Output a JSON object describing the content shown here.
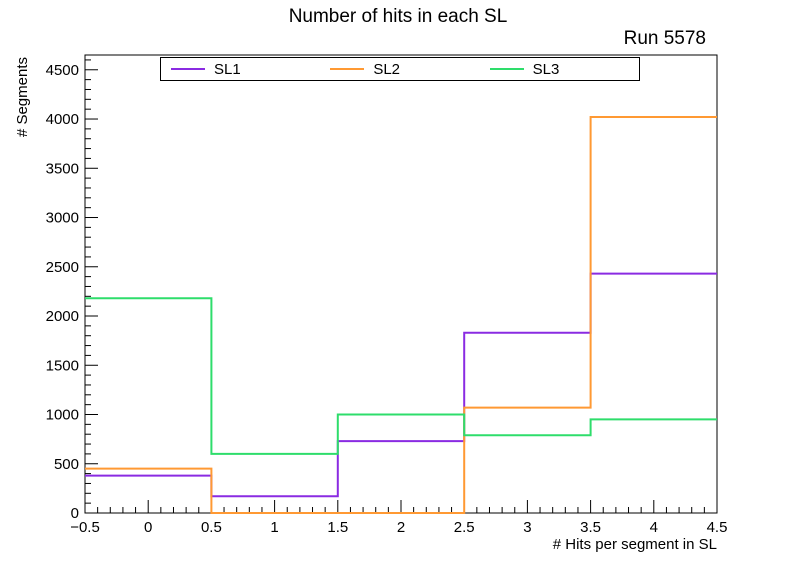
{
  "header": {
    "run_label": "Run 5578"
  },
  "chart_data": {
    "type": "step-histogram",
    "title": "Number of hits in each SL",
    "xlabel": "# Hits per segment in SL",
    "ylabel": "# Segments",
    "xlim": [
      -0.5,
      4.5
    ],
    "ylim": [
      0,
      4650
    ],
    "grid": false,
    "legend_position": "top",
    "bin_edges": [
      -0.5,
      0.5,
      1.5,
      2.5,
      3.5,
      4.5
    ],
    "bin_centers": [
      0,
      1,
      2,
      3,
      4
    ],
    "series": [
      {
        "name": "SL1",
        "color": "#8a2be2",
        "values": [
          380,
          170,
          730,
          1830,
          2430
        ]
      },
      {
        "name": "SL2",
        "color": "#ff9933",
        "values": [
          450,
          0,
          0,
          1070,
          4020
        ]
      },
      {
        "name": "SL3",
        "color": "#2edd6b",
        "values": [
          2180,
          600,
          1000,
          790,
          950
        ]
      }
    ],
    "x_ticks": {
      "values": [
        -0.5,
        0,
        0.5,
        1,
        1.5,
        2,
        2.5,
        3,
        3.5,
        4,
        4.5
      ],
      "labels": [
        "−0.5",
        "0",
        "0.5",
        "1",
        "1.5",
        "2",
        "2.5",
        "3",
        "3.5",
        "4",
        "4.5"
      ]
    },
    "y_ticks": {
      "values": [
        0,
        500,
        1000,
        1500,
        2000,
        2500,
        3000,
        3500,
        4000,
        4500
      ],
      "labels": [
        "0",
        "500",
        "1000",
        "1500",
        "2000",
        "2500",
        "3000",
        "3500",
        "4000",
        "4500"
      ]
    },
    "x_minor_step": 0.1,
    "y_minor_step": 100
  }
}
